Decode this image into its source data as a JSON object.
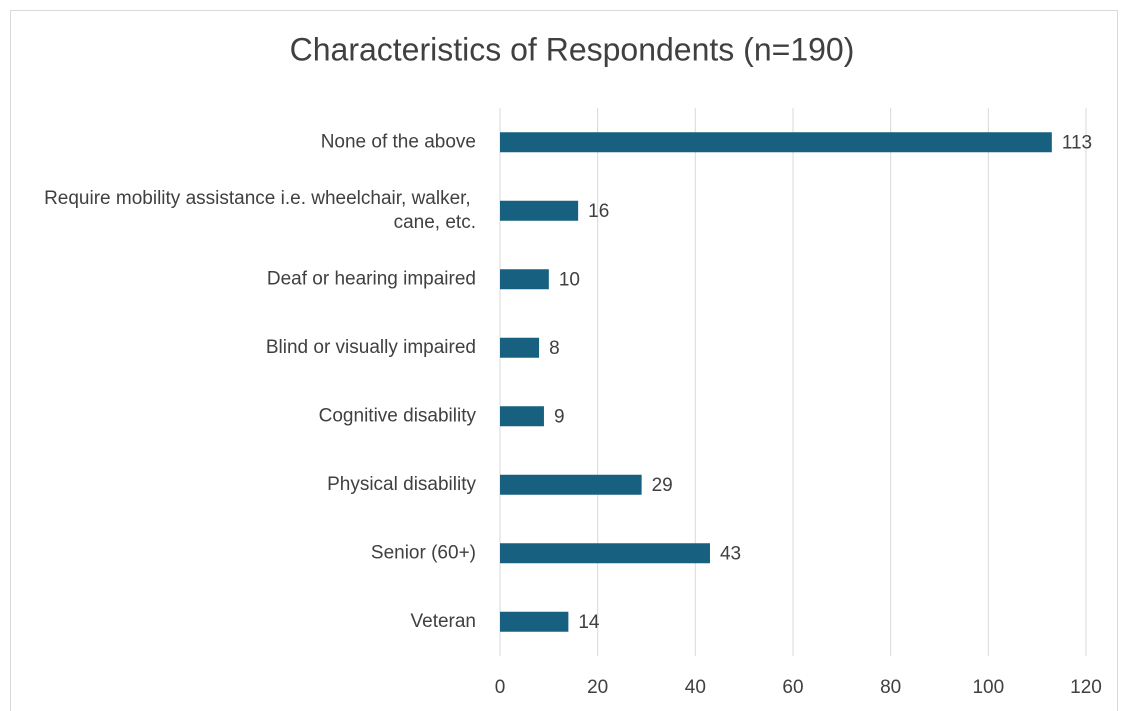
{
  "chart_data": {
    "type": "bar",
    "orientation": "horizontal",
    "title": "Characteristics of Respondents (n=190)",
    "categories": [
      "None of the above",
      "Require mobility assistance i.e. wheelchair, walker, cane, etc.",
      "Deaf or hearing impaired",
      "Blind or visually impaired",
      "Cognitive disability",
      "Physical disability",
      "Senior (60+)",
      "Veteran"
    ],
    "values": [
      113,
      16,
      10,
      8,
      9,
      29,
      43,
      14
    ],
    "color": "#17607f",
    "xlim": [
      0,
      120
    ],
    "xticks": [
      0,
      20,
      40,
      60,
      80,
      100,
      120
    ],
    "grid": true
  }
}
